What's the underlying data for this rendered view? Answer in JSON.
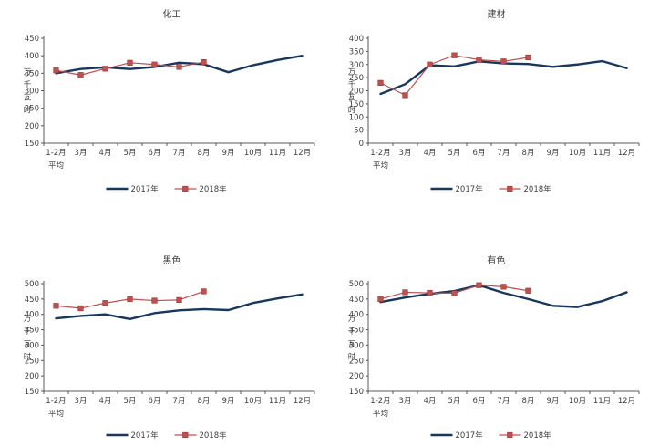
{
  "page": {
    "background": "#ffffff",
    "text_color": "#3d3d3d",
    "axis_color": "#595959"
  },
  "legend": {
    "labels": [
      "2017年",
      "2018年"
    ]
  },
  "chart_data": [
    {
      "type": "line",
      "title": "化工",
      "ylabel": "万千瓦时",
      "ylim": [
        150,
        450
      ],
      "ystep": 50,
      "grid": false,
      "legend_position": "bottom",
      "categories": [
        "1-2月\n平均",
        "3月",
        "4月",
        "5月",
        "6月",
        "7月",
        "8月",
        "9月",
        "10月",
        "11月",
        "12月"
      ],
      "series": [
        {
          "name": "2017年",
          "color": "#17375d",
          "marker": "none",
          "values": [
            350,
            362,
            367,
            362,
            368,
            380,
            376,
            353,
            373,
            388,
            400
          ]
        },
        {
          "name": "2018年",
          "color": "#c0504d",
          "marker": "square",
          "values": [
            358,
            345,
            363,
            380,
            375,
            368,
            382
          ]
        }
      ]
    },
    {
      "type": "line",
      "title": "建材",
      "ylabel": "万千瓦时",
      "ylim": [
        0,
        400
      ],
      "ystep": 50,
      "grid": false,
      "legend_position": "bottom",
      "categories": [
        "1-2月\n平均",
        "3月",
        "4月",
        "5月",
        "6月",
        "7月",
        "8月",
        "9月",
        "10月",
        "11月",
        "12月"
      ],
      "series": [
        {
          "name": "2017年",
          "color": "#17375d",
          "marker": "none",
          "values": [
            188,
            225,
            297,
            293,
            312,
            304,
            302,
            291,
            300,
            313,
            286
          ]
        },
        {
          "name": "2018年",
          "color": "#c0504d",
          "marker": "square",
          "values": [
            230,
            183,
            300,
            335,
            318,
            312,
            327
          ]
        }
      ]
    },
    {
      "type": "line",
      "title": "黑色",
      "ylabel": "万千瓦时",
      "ylim": [
        150,
        500
      ],
      "ystep": 50,
      "grid": false,
      "legend_position": "bottom",
      "categories": [
        "1-2月\n平均",
        "3月",
        "4月",
        "5月",
        "6月",
        "7月",
        "8月",
        "9月",
        "10月",
        "11月",
        "12月"
      ],
      "series": [
        {
          "name": "2017年",
          "color": "#17375d",
          "marker": "none",
          "values": [
            387,
            395,
            400,
            385,
            404,
            413,
            417,
            414,
            437,
            452,
            465
          ]
        },
        {
          "name": "2018年",
          "color": "#c0504d",
          "marker": "square",
          "values": [
            428,
            420,
            437,
            450,
            445,
            447,
            475
          ]
        }
      ]
    },
    {
      "type": "line",
      "title": "有色",
      "ylabel": "万千瓦时",
      "ylim": [
        150,
        500
      ],
      "ystep": 50,
      "grid": false,
      "legend_position": "bottom",
      "categories": [
        "1-2月\n平均",
        "3月",
        "4月",
        "5月",
        "6月",
        "7月",
        "8月",
        "9月",
        "10月",
        "11月",
        "12月"
      ],
      "series": [
        {
          "name": "2017年",
          "color": "#17375d",
          "marker": "none",
          "values": [
            440,
            455,
            467,
            476,
            495,
            470,
            450,
            428,
            424,
            443,
            472
          ]
        },
        {
          "name": "2018年",
          "color": "#c0504d",
          "marker": "square",
          "values": [
            450,
            472,
            470,
            469,
            495,
            490,
            477
          ]
        }
      ]
    }
  ]
}
